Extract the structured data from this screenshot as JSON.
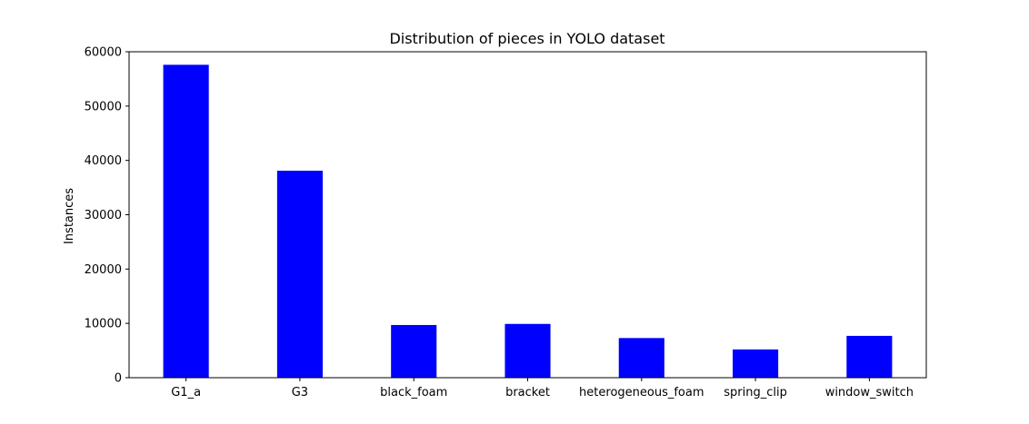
{
  "chart_data": {
    "type": "bar",
    "title": "Distribution of pieces in YOLO dataset",
    "xlabel": "",
    "ylabel": "Instances",
    "categories": [
      "G1_a",
      "G3",
      "black_foam",
      "bracket",
      "heterogeneous_foam",
      "spring_clip",
      "window_switch"
    ],
    "values": [
      57600,
      38100,
      9700,
      9900,
      7300,
      5200,
      7700
    ],
    "ylim": [
      0,
      60000
    ],
    "yticks": [
      0,
      10000,
      20000,
      30000,
      40000,
      50000,
      60000
    ],
    "bar_color": "#0000ff",
    "grid": false,
    "legend": "none"
  }
}
